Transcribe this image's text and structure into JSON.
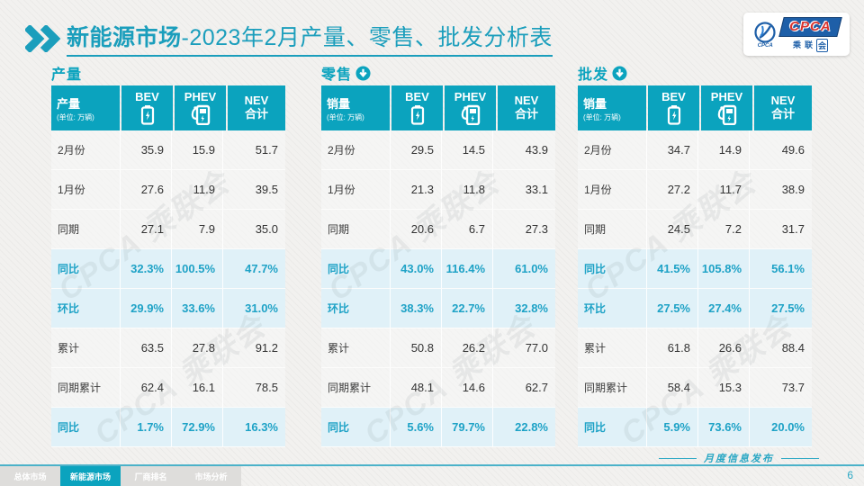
{
  "title": {
    "bold": "新能源市场",
    "rest": "-2023年2月产量、零售、批发分析表"
  },
  "logo": {
    "org": "CPCA",
    "emblem_text": "CPCA",
    "name_chars": [
      "乘",
      "联",
      "会"
    ]
  },
  "icons": {
    "title_chevrons": "double-chevron-right-icon",
    "section_arrow": "arrow-down-circle-icon",
    "bev": "battery-icon",
    "phev": "charger-icon"
  },
  "colors": {
    "teal": "#0ba3be",
    "title_teal": "#1b9ebc",
    "highlight_row_bg": "#e0f1f8",
    "highlight_text": "#1ea2c6",
    "logo_blue": "#1e5fa8",
    "logo_red": "#d8342e"
  },
  "watermark": "CPCA 乘联会",
  "columns": {
    "bev": "BEV",
    "phev": "PHEV",
    "nev_top": "NEV",
    "nev_bottom": "合计"
  },
  "tables": [
    {
      "section": "产量",
      "has_arrow": false,
      "label": "产量",
      "unit": "(单位: 万辆)",
      "rows": [
        {
          "label": "2月份",
          "values": [
            "35.9",
            "15.9",
            "51.7"
          ],
          "type": "normal"
        },
        {
          "label": "1月份",
          "values": [
            "27.6",
            "11.9",
            "39.5"
          ],
          "type": "normal"
        },
        {
          "label": "同期",
          "values": [
            "27.1",
            "7.9",
            "35.0"
          ],
          "type": "normal"
        },
        {
          "label": "同比",
          "values": [
            "32.3%",
            "100.5%",
            "47.7%"
          ],
          "type": "highlight"
        },
        {
          "label": "环比",
          "values": [
            "29.9%",
            "33.6%",
            "31.0%"
          ],
          "type": "highlight"
        },
        {
          "label": "累计",
          "values": [
            "63.5",
            "27.8",
            "91.2"
          ],
          "type": "normal"
        },
        {
          "label": "同期累计",
          "values": [
            "62.4",
            "16.1",
            "78.5"
          ],
          "type": "normal"
        },
        {
          "label": "同比",
          "values": [
            "1.7%",
            "72.9%",
            "16.3%"
          ],
          "type": "highlight"
        }
      ]
    },
    {
      "section": "零售",
      "has_arrow": true,
      "label": "销量",
      "unit": "(单位: 万辆)",
      "rows": [
        {
          "label": "2月份",
          "values": [
            "29.5",
            "14.5",
            "43.9"
          ],
          "type": "normal"
        },
        {
          "label": "1月份",
          "values": [
            "21.3",
            "11.8",
            "33.1"
          ],
          "type": "normal"
        },
        {
          "label": "同期",
          "values": [
            "20.6",
            "6.7",
            "27.3"
          ],
          "type": "normal"
        },
        {
          "label": "同比",
          "values": [
            "43.0%",
            "116.4%",
            "61.0%"
          ],
          "type": "highlight"
        },
        {
          "label": "环比",
          "values": [
            "38.3%",
            "22.7%",
            "32.8%"
          ],
          "type": "highlight"
        },
        {
          "label": "累计",
          "values": [
            "50.8",
            "26.2",
            "77.0"
          ],
          "type": "normal"
        },
        {
          "label": "同期累计",
          "values": [
            "48.1",
            "14.6",
            "62.7"
          ],
          "type": "normal"
        },
        {
          "label": "同比",
          "values": [
            "5.6%",
            "79.7%",
            "22.8%"
          ],
          "type": "highlight"
        }
      ]
    },
    {
      "section": "批发",
      "has_arrow": true,
      "label": "销量",
      "unit": "(单位: 万辆)",
      "rows": [
        {
          "label": "2月份",
          "values": [
            "34.7",
            "14.9",
            "49.6"
          ],
          "type": "normal"
        },
        {
          "label": "1月份",
          "values": [
            "27.2",
            "11.7",
            "38.9"
          ],
          "type": "normal"
        },
        {
          "label": "同期",
          "values": [
            "24.5",
            "7.2",
            "31.7"
          ],
          "type": "normal"
        },
        {
          "label": "同比",
          "values": [
            "41.5%",
            "105.8%",
            "56.1%"
          ],
          "type": "highlight"
        },
        {
          "label": "环比",
          "values": [
            "27.5%",
            "27.4%",
            "27.5%"
          ],
          "type": "highlight"
        },
        {
          "label": "累计",
          "values": [
            "61.8",
            "26.6",
            "88.4"
          ],
          "type": "normal"
        },
        {
          "label": "同期累计",
          "values": [
            "58.4",
            "15.3",
            "73.7"
          ],
          "type": "normal"
        },
        {
          "label": "同比",
          "values": [
            "5.9%",
            "73.6%",
            "20.0%"
          ],
          "type": "highlight"
        }
      ]
    }
  ],
  "footer": {
    "tabs": [
      {
        "label": "总体市场",
        "active": false
      },
      {
        "label": "新能源市场",
        "active": true
      },
      {
        "label": "厂商排名",
        "active": false
      },
      {
        "label": "市场分析",
        "active": false
      }
    ],
    "publish": "月度信息发布",
    "page": "6"
  }
}
